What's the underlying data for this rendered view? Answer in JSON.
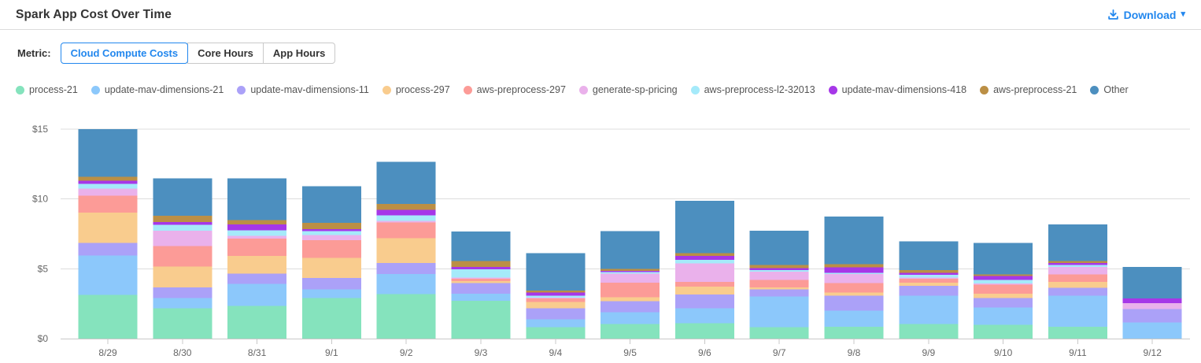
{
  "header": {
    "title": "Spark App Cost Over Time",
    "download_label": "Download"
  },
  "metric_toggle": {
    "label": "Metric:",
    "options": [
      {
        "label": "Cloud Compute Costs",
        "selected": true
      },
      {
        "label": "Core Hours",
        "selected": false
      },
      {
        "label": "App Hours",
        "selected": false
      }
    ]
  },
  "colors": {
    "accent_blue": "#2287ee",
    "axis_text": "#666666",
    "gridline": "#dddddd",
    "axis_line": "#c8c8c8",
    "title_text": "#333333",
    "legend_text": "#555555"
  },
  "chart_data": {
    "type": "bar",
    "stacked": true,
    "title": "Spark App Cost Over Time",
    "xlabel": "",
    "ylabel": "",
    "ylim": [
      0,
      15
    ],
    "ytick_values": [
      0,
      5,
      10,
      15
    ],
    "ytick_labels": [
      "$0",
      "$5",
      "$10",
      "$15"
    ],
    "grid": true,
    "legend_position": "top",
    "categories": [
      "8/29",
      "8/30",
      "8/31",
      "9/1",
      "9/2",
      "9/3",
      "9/4",
      "9/5",
      "9/6",
      "9/7",
      "9/8",
      "9/9",
      "9/10",
      "9/11",
      "9/12"
    ],
    "series": [
      {
        "name": "process-21",
        "color": "#85e3bd",
        "values": [
          3.12,
          2.16,
          2.35,
          2.91,
          3.2,
          2.71,
          0.81,
          1.03,
          1.09,
          0.81,
          0.86,
          1.03,
          1.0,
          0.86,
          0
        ]
      },
      {
        "name": "update-mav-dimensions-21",
        "color": "#8cc8fb",
        "values": [
          2.82,
          0.75,
          1.56,
          0.62,
          1.42,
          0.51,
          0.56,
          0.87,
          1.07,
          2.2,
          1.13,
          2.03,
          1.22,
          2.2,
          1.15
        ]
      },
      {
        "name": "update-mav-dimensions-11",
        "color": "#aba1f8",
        "values": [
          0.92,
          0.76,
          0.75,
          0.81,
          0.79,
          0.76,
          0.79,
          0.79,
          1.0,
          0.52,
          1.07,
          0.72,
          0.69,
          0.57,
          0.97
        ]
      },
      {
        "name": "process-297",
        "color": "#f9cc8e",
        "values": [
          2.16,
          1.5,
          1.26,
          1.45,
          1.79,
          0.15,
          0.47,
          0.28,
          0.56,
          0.14,
          0.23,
          0.22,
          0.3,
          0.43,
          0
        ]
      },
      {
        "name": "aws-preprocess-297",
        "color": "#fc9b97",
        "values": [
          1.22,
          1.47,
          1.24,
          1.26,
          1.13,
          0.15,
          0.25,
          1.03,
          0.34,
          0.52,
          0.68,
          0.29,
          0.64,
          0.55,
          0
        ]
      },
      {
        "name": "generate-sp-pricing",
        "color": "#eab1eb",
        "values": [
          0.49,
          1.09,
          0.19,
          0.38,
          0.11,
          0.1,
          0.05,
          0.66,
          1.32,
          0.6,
          0.65,
          0.09,
          0.1,
          0.52,
          0.43
        ]
      },
      {
        "name": "aws-preprocess-l2-32013",
        "color": "#a5eafa",
        "values": [
          0.36,
          0.41,
          0.41,
          0.28,
          0.39,
          0.57,
          0.13,
          0.1,
          0.26,
          0.12,
          0.1,
          0.19,
          0.24,
          0.13,
          0
        ]
      },
      {
        "name": "update-mav-dimensions-418",
        "color": "#a637e8",
        "values": [
          0.23,
          0.22,
          0.42,
          0.13,
          0.4,
          0.17,
          0.25,
          0.09,
          0.28,
          0.13,
          0.37,
          0.15,
          0.28,
          0.15,
          0.33
        ]
      },
      {
        "name": "aws-preprocess-21",
        "color": "#bb8f45",
        "values": [
          0.28,
          0.44,
          0.3,
          0.45,
          0.41,
          0.44,
          0.13,
          0.13,
          0.19,
          0.22,
          0.23,
          0.19,
          0.14,
          0.14,
          0
        ]
      },
      {
        "name": "Other",
        "color": "#4c8fbf",
        "values": [
          3.4,
          2.68,
          2.99,
          2.61,
          3.01,
          2.11,
          2.67,
          2.73,
          3.76,
          2.47,
          3.42,
          2.06,
          2.25,
          2.63,
          2.25
        ]
      }
    ]
  }
}
